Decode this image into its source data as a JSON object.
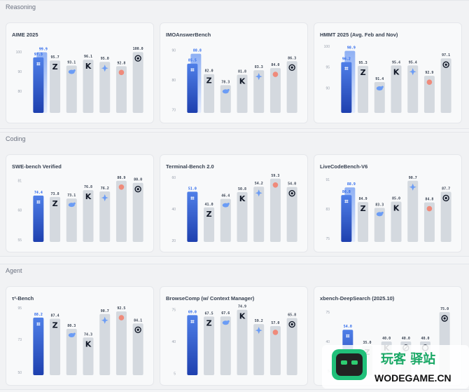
{
  "sections": [
    {
      "label": "Reasoning"
    },
    {
      "label": "Coding"
    },
    {
      "label": "Agent"
    }
  ],
  "colors": {
    "highlight_top": "#4f7fe8",
    "highlight_bottom": "#1e40af",
    "bar": "#d4d9df",
    "bar_light": "#e3e6ea",
    "logo_dark": "#111827",
    "logo_blue": "#6b9cf5",
    "logo_red": "#ef8a7a"
  },
  "watermark": {
    "line1": "玩客 驿站",
    "line2": "WODEGAME.CN"
  },
  "chart_data": [
    {
      "type": "bar",
      "title": "AIME 2025",
      "ylim": [
        69,
        104
      ],
      "yticks": [
        100,
        90,
        80
      ],
      "ytick_labels": [
        "100",
        "90",
        "80"
      ],
      "series": [
        {
          "name": "ours",
          "values": [
            97.3,
            99.9
          ],
          "logo": "shortcut-logo-icon"
        },
        {
          "name": "m2",
          "values": [
            95.7
          ],
          "logo": "zhipu-logo-icon"
        },
        {
          "name": "m3",
          "values": [
            93.1
          ],
          "logo": "deepseek-logo-icon"
        },
        {
          "name": "m4",
          "values": [
            96.1
          ],
          "logo": "kimi-logo-icon"
        },
        {
          "name": "m5",
          "values": [
            95.0
          ],
          "logo": "gemini-logo-icon"
        },
        {
          "name": "m6",
          "values": [
            92.8
          ],
          "logo": "claude-logo-icon"
        },
        {
          "name": "m7",
          "values": [
            100.0
          ],
          "logo": "openai-logo-icon"
        }
      ]
    },
    {
      "type": "bar",
      "title": "IMOAnswerBench",
      "ylim": [
        69,
        92
      ],
      "yticks": [
        90,
        80,
        70
      ],
      "ytick_labels": [
        "90",
        "80",
        "70"
      ],
      "series": [
        {
          "name": "ours",
          "values": [
            85.5,
            88.8
          ],
          "logo": "shortcut-logo-icon"
        },
        {
          "name": "m2",
          "values": [
            82.0
          ],
          "logo": "zhipu-logo-icon"
        },
        {
          "name": "m3",
          "values": [
            78.3
          ],
          "logo": "deepseek-logo-icon"
        },
        {
          "name": "m4",
          "values": [
            81.8
          ],
          "logo": "kimi-logo-icon"
        },
        {
          "name": "m5",
          "values": [
            83.3
          ],
          "logo": "gemini-logo-icon"
        },
        {
          "name": "m6",
          "values": [
            84.0
          ],
          "logo": "claude-logo-icon"
        },
        {
          "name": "m7",
          "values": [
            86.3
          ],
          "logo": "openai-logo-icon"
        }
      ]
    },
    {
      "type": "bar",
      "title": "HMMT 2025 (Avg. Feb and Nov)",
      "ylim": [
        84,
        100.5
      ],
      "yticks": [
        100,
        95,
        90
      ],
      "ytick_labels": [
        "100",
        "95",
        "90"
      ],
      "series": [
        {
          "name": "ours",
          "values": [
            96.2,
            98.9
          ],
          "logo": "shortcut-logo-icon"
        },
        {
          "name": "m2",
          "values": [
            95.3
          ],
          "logo": "zhipu-logo-icon"
        },
        {
          "name": "m3",
          "values": [
            91.4
          ],
          "logo": "deepseek-logo-icon"
        },
        {
          "name": "m4",
          "values": [
            95.4
          ],
          "logo": "kimi-logo-icon"
        },
        {
          "name": "m5",
          "values": [
            95.4
          ],
          "logo": "gemini-logo-icon"
        },
        {
          "name": "m6",
          "values": [
            92.9
          ],
          "logo": "claude-logo-icon"
        },
        {
          "name": "m7",
          "values": [
            97.1
          ],
          "logo": "openai-logo-icon"
        }
      ]
    },
    {
      "type": "bar",
      "title": "SWE-bench Verified",
      "ylim": [
        54,
        83
      ],
      "yticks": [
        81,
        68,
        55
      ],
      "ytick_labels": [
        "81",
        "68",
        "55"
      ],
      "series": [
        {
          "name": "ours",
          "values": [
            74.4
          ],
          "logo": "shortcut-logo-icon"
        },
        {
          "name": "m2",
          "values": [
            73.8
          ],
          "logo": "zhipu-logo-icon"
        },
        {
          "name": "m3",
          "values": [
            73.1
          ],
          "logo": "deepseek-logo-icon"
        },
        {
          "name": "m4",
          "values": [
            76.8
          ],
          "logo": "kimi-logo-icon"
        },
        {
          "name": "m5",
          "values": [
            76.2
          ],
          "logo": "gemini-logo-icon"
        },
        {
          "name": "m6",
          "values": [
            80.9
          ],
          "logo": "claude-logo-icon"
        },
        {
          "name": "m7",
          "values": [
            80.0
          ],
          "logo": "openai-logo-icon"
        }
      ]
    },
    {
      "type": "bar",
      "title": "Terminal-Bench 2.0",
      "ylim": [
        19,
        61
      ],
      "yticks": [
        60,
        40,
        20
      ],
      "ytick_labels": [
        "60",
        "40",
        "20"
      ],
      "series": [
        {
          "name": "ours",
          "values": [
            51.0
          ],
          "logo": "shortcut-logo-icon"
        },
        {
          "name": "m2",
          "values": [
            41.0
          ],
          "logo": "zhipu-logo-icon"
        },
        {
          "name": "m3",
          "values": [
            46.4
          ],
          "logo": "deepseek-logo-icon"
        },
        {
          "name": "m4",
          "values": [
            50.8
          ],
          "logo": "kimi-logo-icon"
        },
        {
          "name": "m5",
          "values": [
            54.2
          ],
          "logo": "gemini-logo-icon"
        },
        {
          "name": "m6",
          "values": [
            59.3
          ],
          "logo": "claude-logo-icon"
        },
        {
          "name": "m7",
          "values": [
            54.0
          ],
          "logo": "openai-logo-icon"
        }
      ]
    },
    {
      "type": "bar",
      "title": "LiveCodeBench-V6",
      "ylim": [
        74,
        92
      ],
      "yticks": [
        91,
        83,
        75
      ],
      "ytick_labels": [
        "91",
        "83",
        "75"
      ],
      "series": [
        {
          "name": "ours",
          "values": [
            86.8,
            88.9
          ],
          "logo": "shortcut-logo-icon"
        },
        {
          "name": "m2",
          "values": [
            84.9
          ],
          "logo": "zhipu-logo-icon"
        },
        {
          "name": "m3",
          "values": [
            83.3
          ],
          "logo": "deepseek-logo-icon"
        },
        {
          "name": "m4",
          "values": [
            85.0
          ],
          "logo": "kimi-logo-icon"
        },
        {
          "name": "m5",
          "values": [
            90.7
          ],
          "logo": "gemini-logo-icon"
        },
        {
          "name": "m6",
          "values": [
            84.8
          ],
          "logo": "claude-logo-icon"
        },
        {
          "name": "m7",
          "values": [
            87.7
          ],
          "logo": "openai-logo-icon"
        }
      ]
    },
    {
      "type": "bar",
      "title": "τ²-Bench",
      "ylim": [
        48,
        95
      ],
      "yticks": [
        95,
        73,
        50
      ],
      "ytick_labels": [
        "95",
        "73",
        "50"
      ],
      "series": [
        {
          "name": "ours",
          "values": [
            88.2
          ],
          "logo": "shortcut-logo-icon"
        },
        {
          "name": "m2",
          "values": [
            87.4
          ],
          "logo": "zhipu-logo-icon"
        },
        {
          "name": "m3",
          "values": [
            80.3
          ],
          "logo": "deepseek-logo-icon"
        },
        {
          "name": "m4",
          "values": [
            74.3
          ],
          "logo": "kimi-logo-icon"
        },
        {
          "name": "m5",
          "values": [
            90.7
          ],
          "logo": "gemini-logo-icon"
        },
        {
          "name": "m6",
          "values": [
            92.5
          ],
          "logo": "claude-logo-icon"
        },
        {
          "name": "m7",
          "values": [
            84.1
          ],
          "logo": "openai-logo-icon"
        }
      ]
    },
    {
      "type": "bar",
      "title": "BrowseComp (w/ Context Manager)",
      "ylim": [
        3,
        77
      ],
      "yticks": [
        75,
        40,
        5
      ],
      "ytick_labels": [
        "75",
        "40",
        "5"
      ],
      "series": [
        {
          "name": "ours",
          "values": [
            69.0
          ],
          "logo": "shortcut-logo-icon"
        },
        {
          "name": "m2",
          "values": [
            67.5
          ],
          "logo": "zhipu-logo-icon"
        },
        {
          "name": "m3",
          "values": [
            67.6
          ],
          "logo": "deepseek-logo-icon"
        },
        {
          "name": "m4",
          "values": [
            74.9
          ],
          "logo": "kimi-logo-icon"
        },
        {
          "name": "m5",
          "values": [
            59.2
          ],
          "logo": "gemini-logo-icon"
        },
        {
          "name": "m6",
          "values": [
            57.0
          ],
          "logo": "claude-logo-icon"
        },
        {
          "name": "m7",
          "values": [
            65.8
          ],
          "logo": "openai-logo-icon"
        }
      ]
    },
    {
      "type": "bar",
      "title": "xbench-DeepSearch (2025.10)",
      "ylim": [
        0,
        80
      ],
      "yticks": [
        75,
        40,
        5
      ],
      "ytick_labels": [
        "75",
        "40",
        "5"
      ],
      "series": [
        {
          "name": "ours",
          "values": [
            54.0
          ],
          "logo": "shortcut-logo-icon"
        },
        {
          "name": "m2",
          "values": [
            35.0
          ],
          "logo": "zhipu-logo-icon"
        },
        {
          "name": "m3",
          "values": [
            40.0
          ],
          "logo": "kimi-logo-icon"
        },
        {
          "name": "m4",
          "values": [
            40.0
          ],
          "logo": "ring-logo-icon"
        },
        {
          "name": "m5",
          "values": [
            40.0
          ],
          "logo": "o-logo-icon"
        },
        {
          "name": "m6",
          "values": [
            75.0
          ],
          "logo": "openai-logo-icon"
        }
      ]
    }
  ]
}
